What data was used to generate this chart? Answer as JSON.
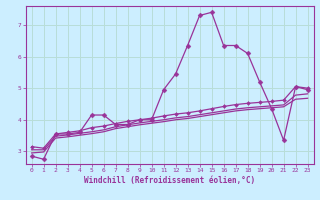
{
  "xlabel": "Windchill (Refroidissement éolien,°C)",
  "background_color": "#cceeff",
  "grid_color": "#b8ddd8",
  "line_color": "#993399",
  "xlim": [
    -0.5,
    23.5
  ],
  "ylim": [
    2.6,
    7.6
  ],
  "xticks": [
    0,
    1,
    2,
    3,
    4,
    5,
    6,
    7,
    8,
    9,
    10,
    11,
    12,
    13,
    14,
    15,
    16,
    17,
    18,
    19,
    20,
    21,
    22,
    23
  ],
  "yticks": [
    3,
    4,
    5,
    6,
    7
  ],
  "series1_x": [
    0,
    1,
    2,
    3,
    4,
    5,
    6,
    7,
    8,
    9,
    10,
    11,
    12,
    13,
    14,
    15,
    16,
    17,
    18,
    19,
    20,
    21,
    22,
    23
  ],
  "series1_y": [
    2.85,
    2.75,
    3.55,
    3.55,
    3.6,
    4.15,
    4.15,
    3.85,
    3.85,
    4.0,
    4.0,
    4.95,
    5.45,
    6.35,
    7.3,
    7.4,
    6.35,
    6.35,
    6.1,
    5.2,
    4.35,
    3.35,
    5.05,
    4.95
  ],
  "series2_x": [
    0,
    1,
    2,
    3,
    4,
    5,
    6,
    7,
    8,
    9,
    10,
    11,
    12,
    13,
    14,
    15,
    16,
    17,
    18,
    19,
    20,
    21,
    22,
    23
  ],
  "series2_y": [
    3.15,
    3.1,
    3.55,
    3.6,
    3.65,
    3.75,
    3.8,
    3.88,
    3.95,
    4.0,
    4.05,
    4.12,
    4.18,
    4.22,
    4.28,
    4.35,
    4.42,
    4.48,
    4.52,
    4.55,
    4.58,
    4.62,
    5.05,
    5.0
  ],
  "series3_x": [
    0,
    1,
    2,
    3,
    4,
    5,
    6,
    7,
    8,
    9,
    10,
    11,
    12,
    13,
    14,
    15,
    16,
    17,
    18,
    19,
    20,
    21,
    22,
    23
  ],
  "series3_y": [
    3.05,
    3.05,
    3.48,
    3.52,
    3.57,
    3.62,
    3.68,
    3.78,
    3.84,
    3.9,
    3.95,
    4.0,
    4.06,
    4.1,
    4.16,
    4.22,
    4.28,
    4.34,
    4.38,
    4.41,
    4.44,
    4.47,
    4.78,
    4.82
  ],
  "series4_x": [
    0,
    1,
    2,
    3,
    4,
    5,
    6,
    7,
    8,
    9,
    10,
    11,
    12,
    13,
    14,
    15,
    16,
    17,
    18,
    19,
    20,
    21,
    22,
    23
  ],
  "series4_y": [
    2.95,
    2.98,
    3.42,
    3.46,
    3.51,
    3.56,
    3.62,
    3.72,
    3.78,
    3.84,
    3.89,
    3.94,
    4.0,
    4.04,
    4.1,
    4.16,
    4.22,
    4.28,
    4.32,
    4.35,
    4.38,
    4.41,
    4.65,
    4.68
  ]
}
